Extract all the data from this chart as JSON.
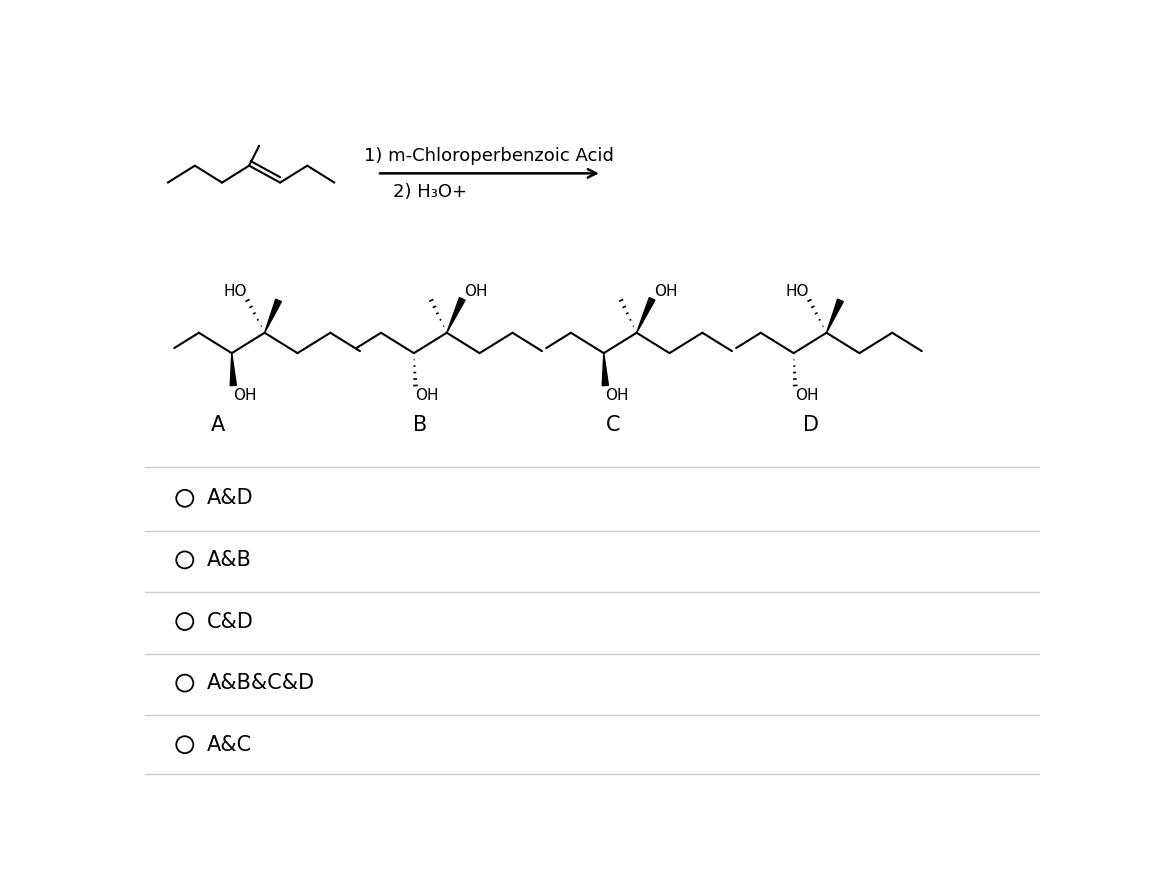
{
  "bg_color": "#ffffff",
  "text_color": "#000000",
  "reaction_step1": "1) m-Chloroperbenzoic Acid",
  "reaction_step2": "2) H₃O+",
  "choices": [
    "A&D",
    "A&B",
    "C&D",
    "A&B&C&D",
    "A&C"
  ],
  "molecule_labels": [
    "A",
    "B",
    "C",
    "D"
  ],
  "line_color": "#cccccc",
  "font_size_choices": 15,
  "font_size_labels": 15,
  "font_size_reaction": 13,
  "font_size_mol_text": 11
}
